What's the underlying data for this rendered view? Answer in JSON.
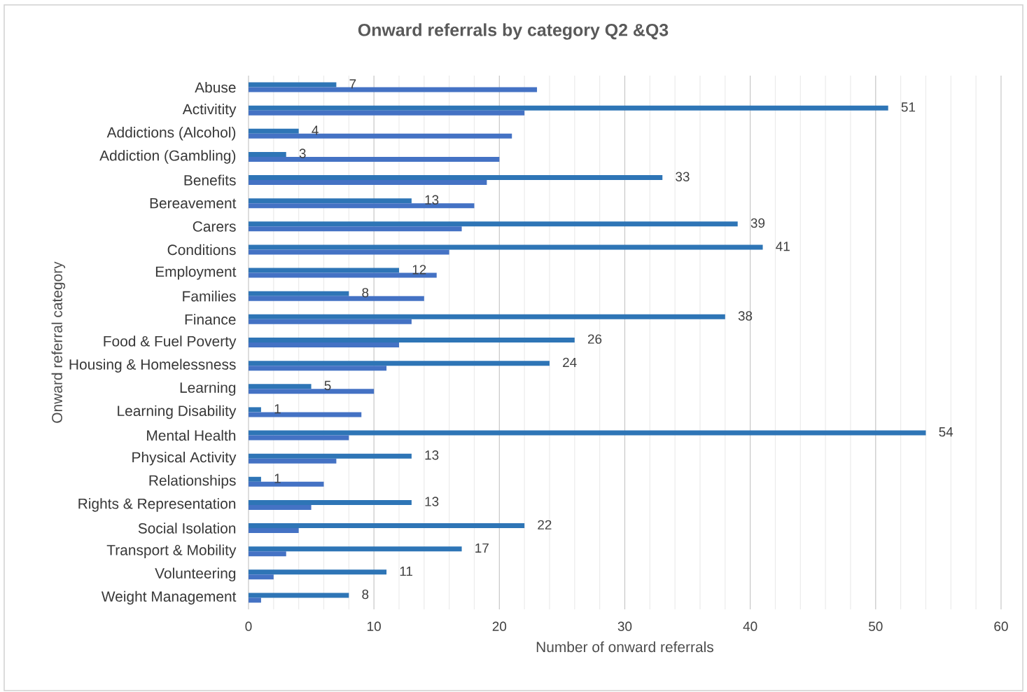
{
  "chart_data": {
    "type": "bar",
    "orientation": "horizontal",
    "title": "Onward  referrals by category Q2 &Q3",
    "xlabel": "Number of onward referrals",
    "ylabel": "Onward referral category",
    "categories": [
      "Abuse",
      "Activitity",
      "Addictions (Alcohol)",
      "Addiction (Gambling)",
      "Benefits",
      "Bereavement",
      "Carers",
      "Conditions",
      "Employment",
      "Families",
      "Finance",
      "Food & Fuel Poverty",
      "Housing & Homelessness",
      "Learning",
      "Learning Disability",
      "Mental Health",
      "Physical Activity",
      "Relationships",
      "Rights & Representation",
      "Social Isolation",
      "Transport & Mobility",
      "Volunteering",
      "Weight Management"
    ],
    "series": [
      {
        "color": "#2e75b6",
        "values": [
          7,
          51,
          4,
          3,
          33,
          13,
          39,
          41,
          12,
          8,
          38,
          26,
          24,
          5,
          1,
          54,
          13,
          1,
          13,
          22,
          17,
          11,
          8
        ],
        "value_labels": [
          "7",
          "51",
          "4",
          "3",
          "33",
          "13",
          "39",
          "41",
          "12",
          "8",
          "38",
          "26",
          "24",
          "5",
          "1",
          "54",
          "13",
          "1",
          "13",
          "22",
          "17",
          "11",
          "8"
        ]
      },
      {
        "color": "#4472c4",
        "values": [
          23,
          22,
          21,
          20,
          19,
          18,
          17,
          16,
          15,
          14,
          13,
          12,
          11,
          10,
          9,
          8,
          7,
          6,
          5,
          4,
          3,
          2,
          1
        ]
      }
    ],
    "xlim": [
      0,
      60
    ],
    "xticks": [
      0,
      10,
      20,
      30,
      40,
      50,
      60
    ],
    "grid": "x"
  }
}
